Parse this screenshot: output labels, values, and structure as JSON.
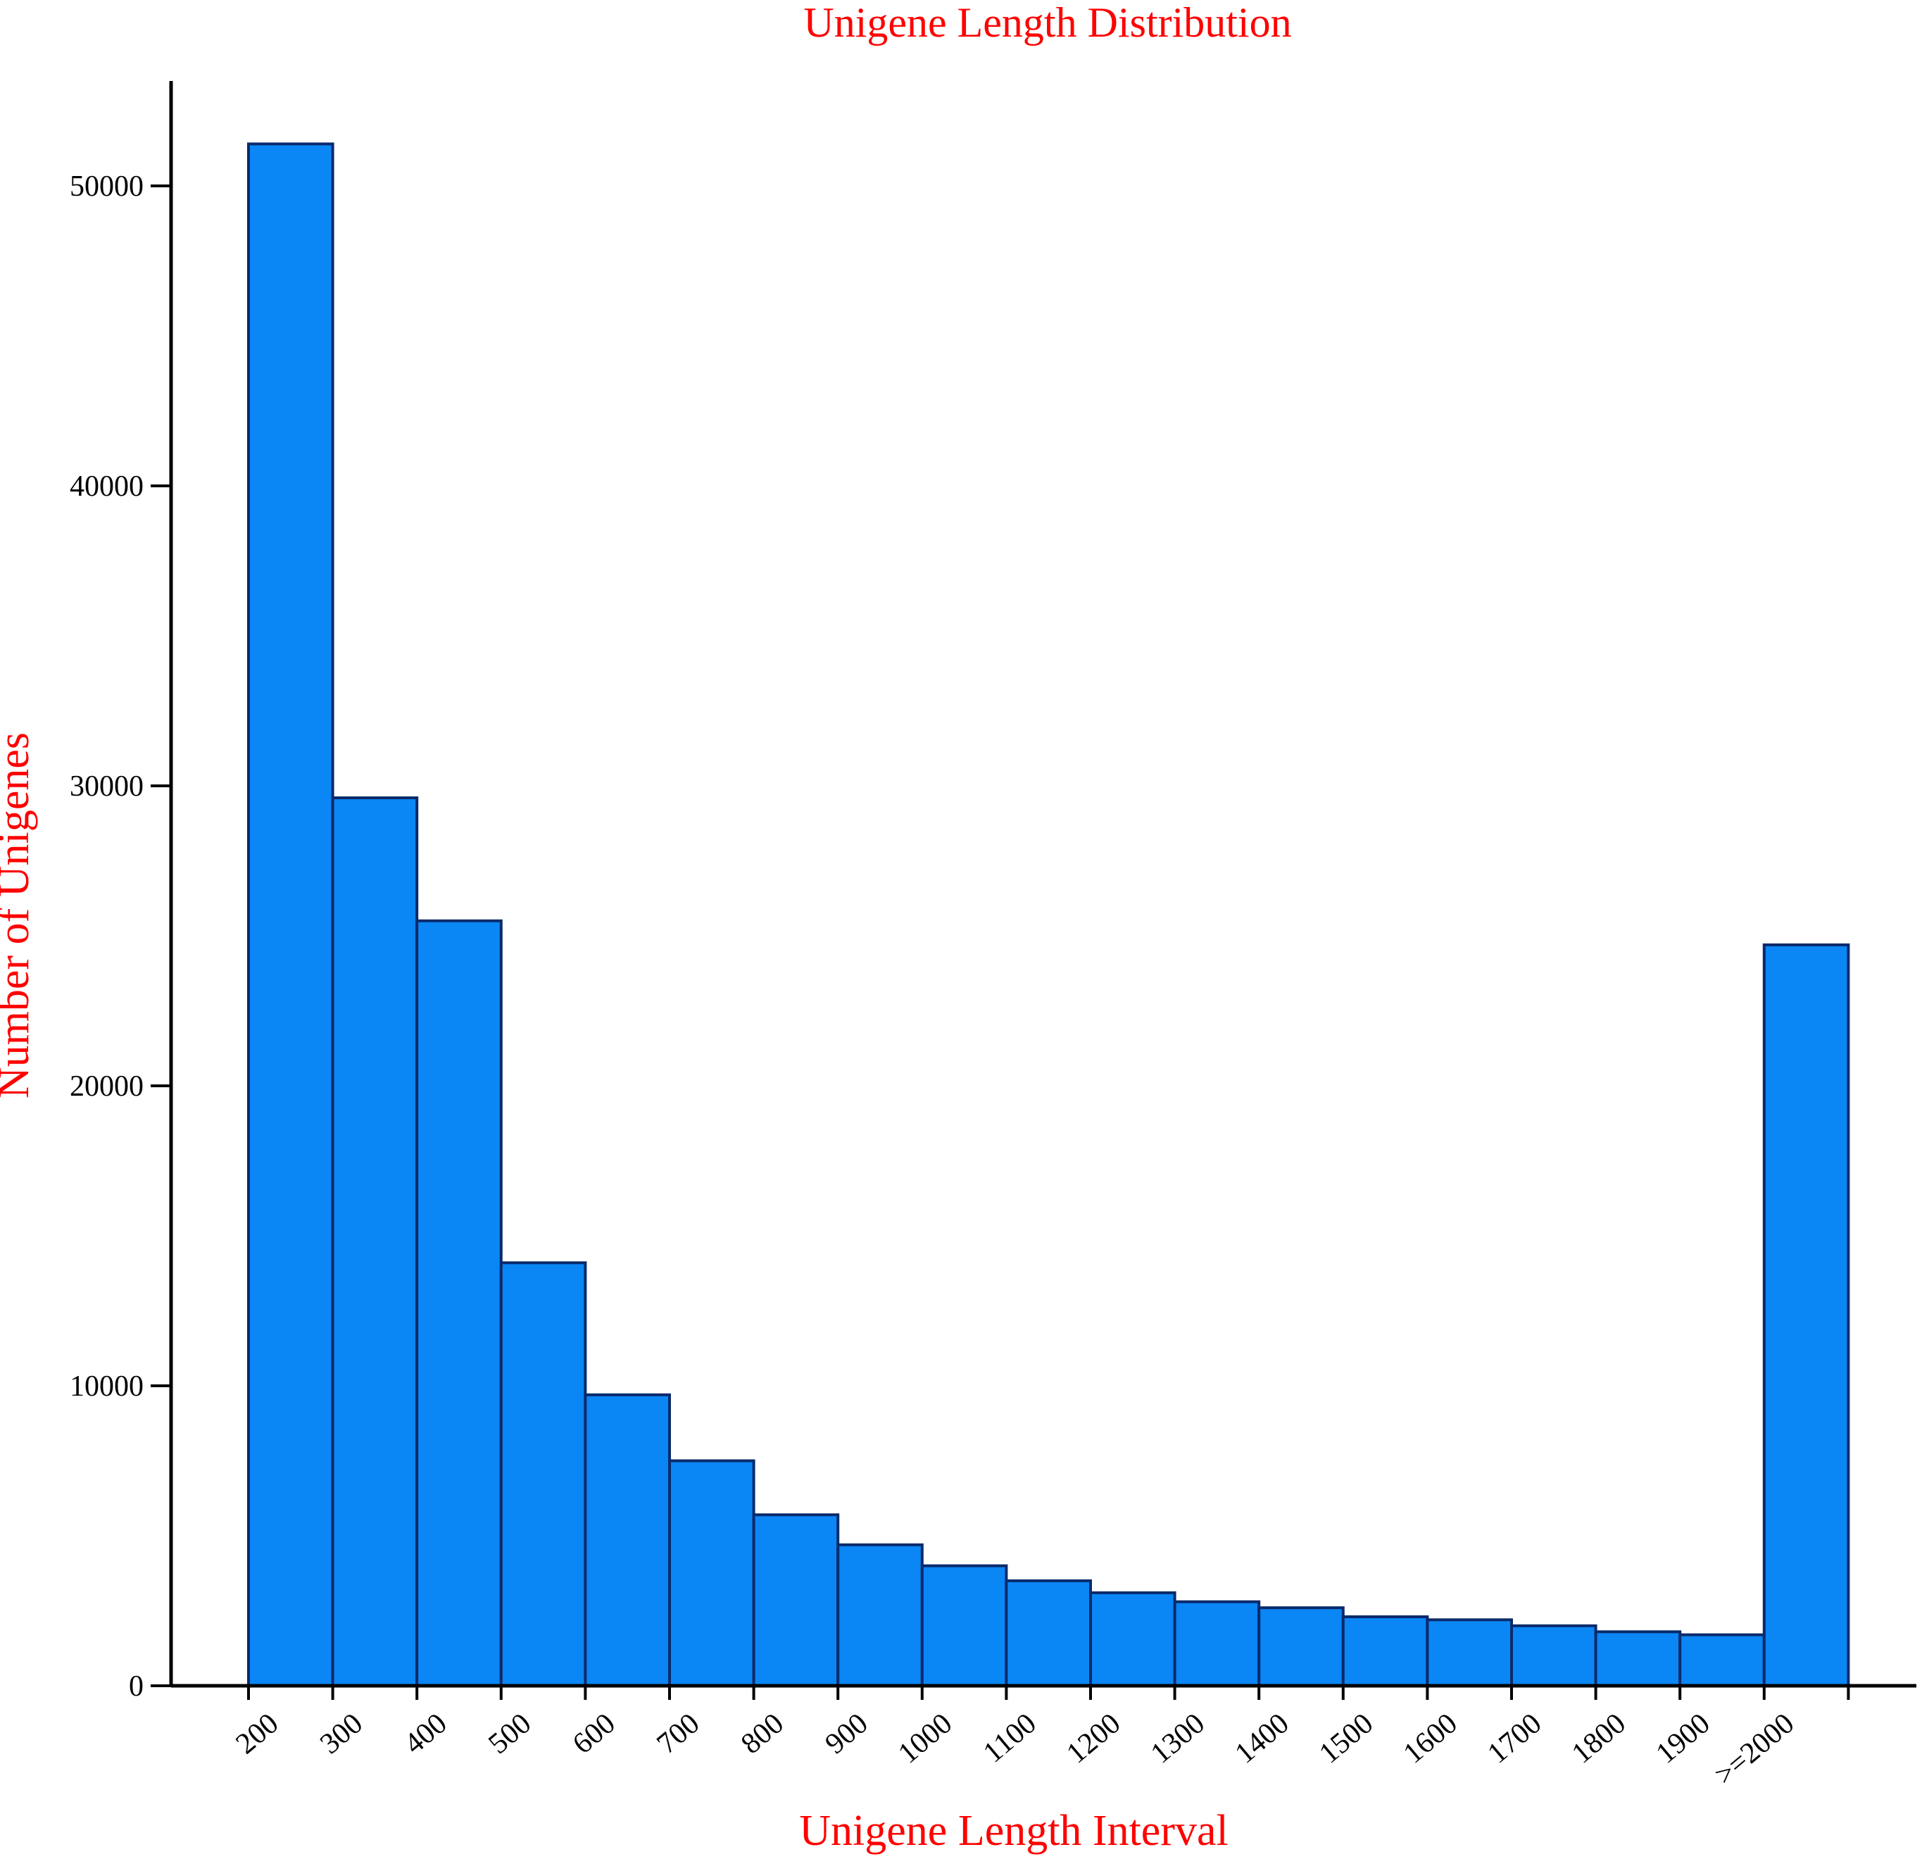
{
  "chart_data": {
    "type": "bar",
    "title": "Unigene Length Distribution",
    "xlabel": "Unigene Length Interval",
    "ylabel": "Number of Unigenes",
    "categories": [
      "200",
      "300",
      "400",
      "500",
      "600",
      "700",
      "800",
      "900",
      "1000",
      "1100",
      "1200",
      "1300",
      "1400",
      "1500",
      "1600",
      "1700",
      "1800",
      "1900",
      ">=2000"
    ],
    "values": [
      51400,
      29600,
      25500,
      14100,
      9700,
      7500,
      5700,
      4700,
      4000,
      3500,
      3100,
      2800,
      2600,
      2300,
      2200,
      2000,
      1800,
      1700,
      24700
    ],
    "yticks": [
      0,
      10000,
      20000,
      30000,
      40000,
      50000
    ],
    "ylim": [
      0,
      52000
    ],
    "grid": false,
    "legend": "none",
    "bar_color": "#0a87f5",
    "edge_color": "#0a2a6b"
  }
}
